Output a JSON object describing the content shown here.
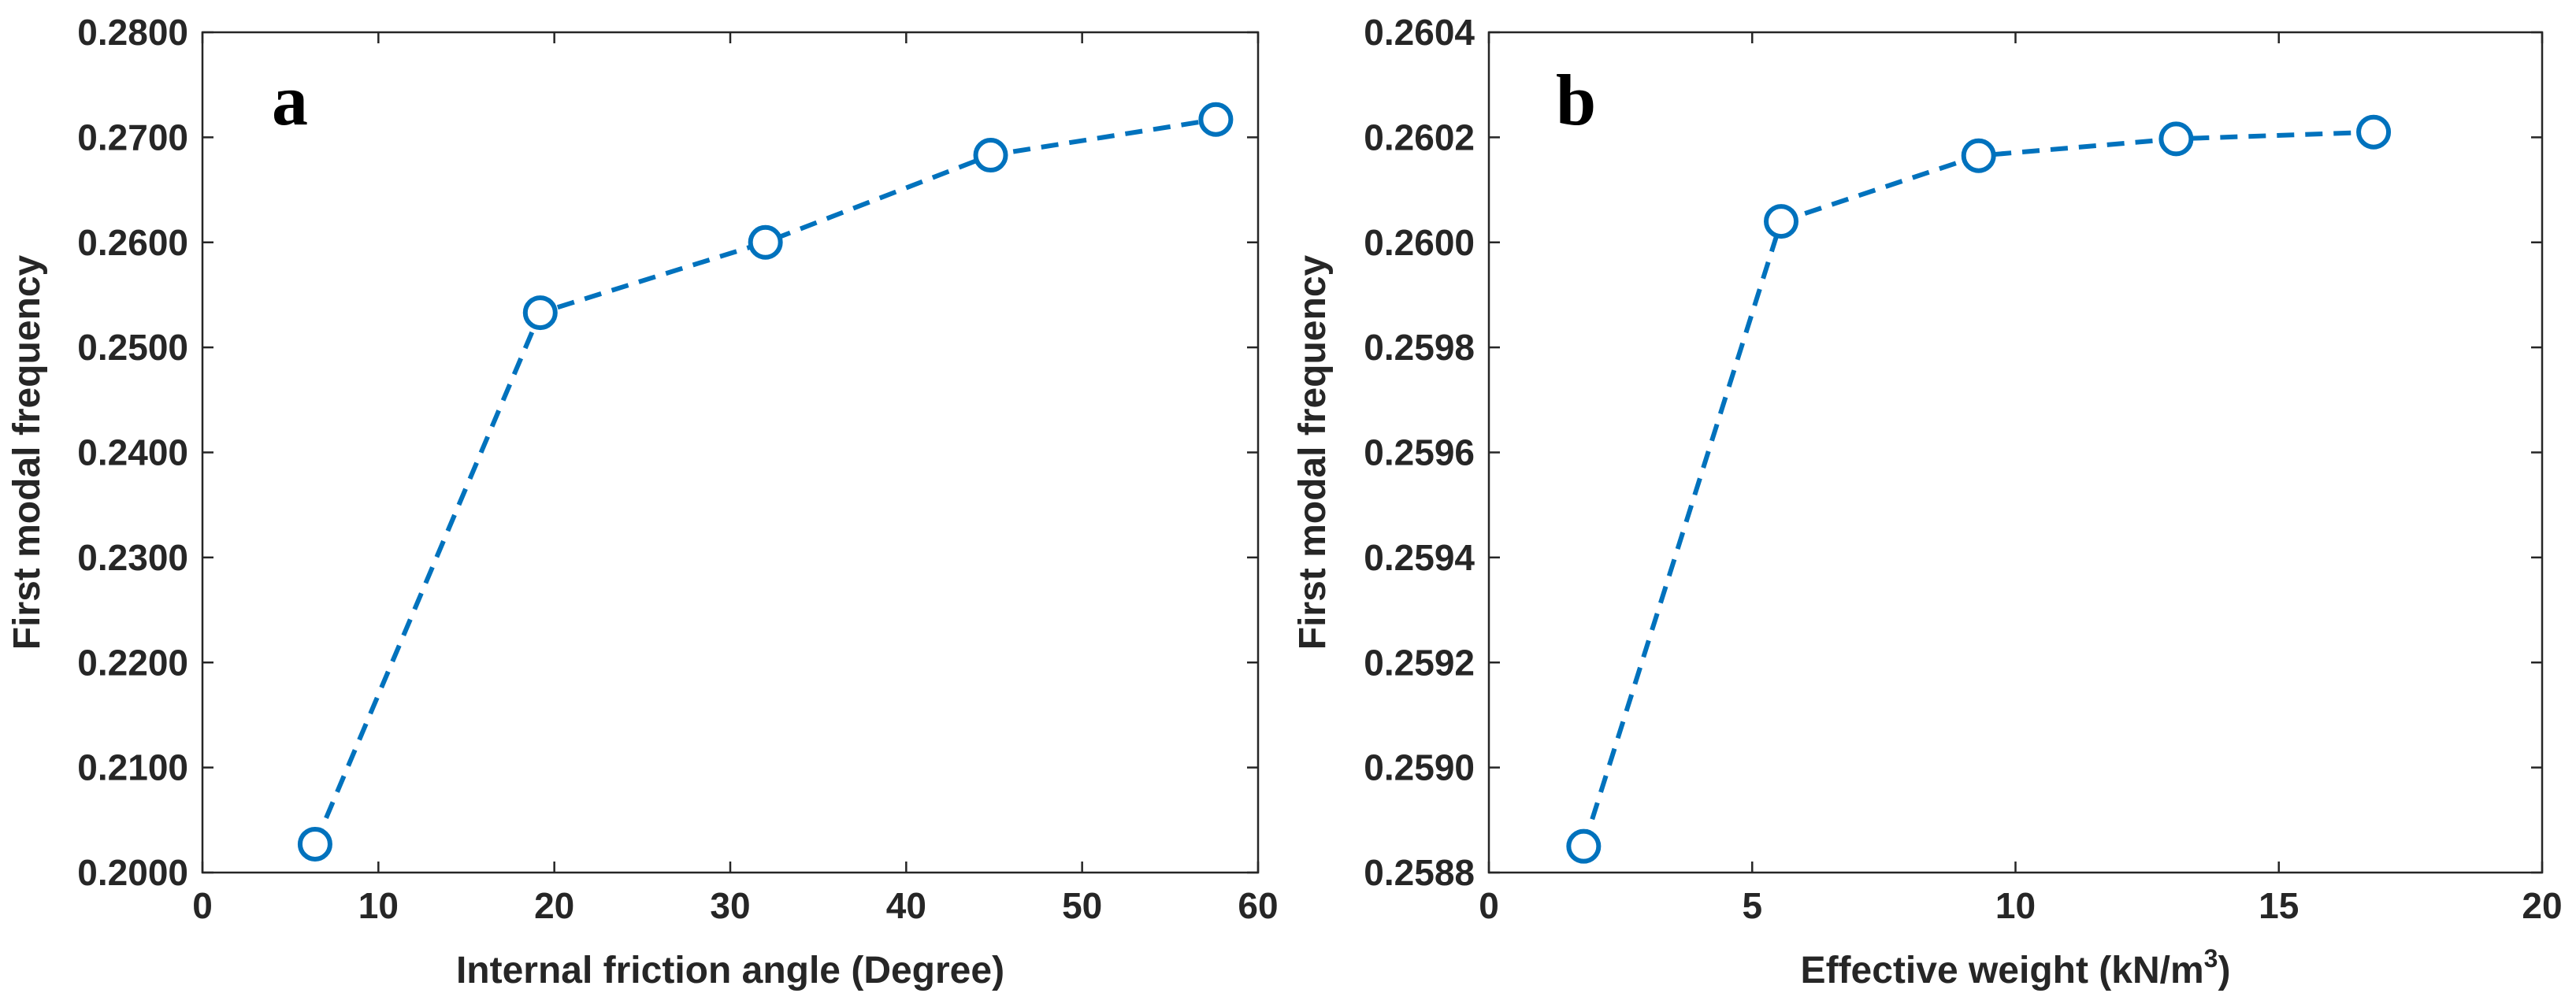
{
  "colors": {
    "series": "#0072BD",
    "axis": "#262626",
    "background": "#ffffff"
  },
  "chart_data": [
    {
      "type": "line",
      "panel_label": "a",
      "title": "",
      "xlabel": "Internal friction angle (Degree)",
      "ylabel": "First modal frequency",
      "xlim": [
        0,
        60
      ],
      "ylim": [
        0.2,
        0.28
      ],
      "x_ticks": [
        0,
        10,
        20,
        30,
        40,
        50,
        60
      ],
      "x_tick_labels": [
        "0",
        "10",
        "20",
        "30",
        "40",
        "50",
        "60"
      ],
      "y_ticks": [
        0.2,
        0.21,
        0.22,
        0.23,
        0.24,
        0.25,
        0.26,
        0.27,
        0.28
      ],
      "y_tick_labels": [
        "0.2000",
        "0.2100",
        "0.2200",
        "0.2300",
        "0.2400",
        "0.2500",
        "0.2600",
        "0.2700",
        "0.2800"
      ],
      "grid": false,
      "legend": "none",
      "line_style": "dashed",
      "marker": "circle",
      "series": [
        {
          "name": "First modal frequency",
          "x": [
            6.4,
            19.2,
            32.0,
            44.8,
            57.6
          ],
          "y": [
            0.2027,
            0.2533,
            0.26,
            0.2683,
            0.2717
          ]
        }
      ]
    },
    {
      "type": "line",
      "panel_label": "b",
      "title": "",
      "xlabel": "Effective weight (kN/m",
      "xlabel_superscript": "3",
      "xlabel_suffix": ")",
      "ylabel": "First modal frequency",
      "xlim": [
        0,
        20
      ],
      "ylim": [
        0.2588,
        0.2604
      ],
      "x_ticks": [
        0,
        5,
        10,
        15,
        20
      ],
      "x_tick_labels": [
        "0",
        "5",
        "10",
        "15",
        "20"
      ],
      "y_ticks": [
        0.2588,
        0.259,
        0.2592,
        0.2594,
        0.2596,
        0.2598,
        0.26,
        0.2602,
        0.2604
      ],
      "y_tick_labels": [
        "0.2588",
        "0.2590",
        "0.2592",
        "0.2594",
        "0.2596",
        "0.2598",
        "0.2600",
        "0.2602",
        "0.2604"
      ],
      "grid": false,
      "legend": "none",
      "line_style": "dashed",
      "marker": "circle",
      "series": [
        {
          "name": "First modal frequency",
          "x": [
            1.8,
            5.55,
            9.3,
            13.05,
            16.8
          ],
          "y": [
            0.25885,
            0.26004,
            0.260165,
            0.260197,
            0.26021
          ]
        }
      ]
    }
  ]
}
